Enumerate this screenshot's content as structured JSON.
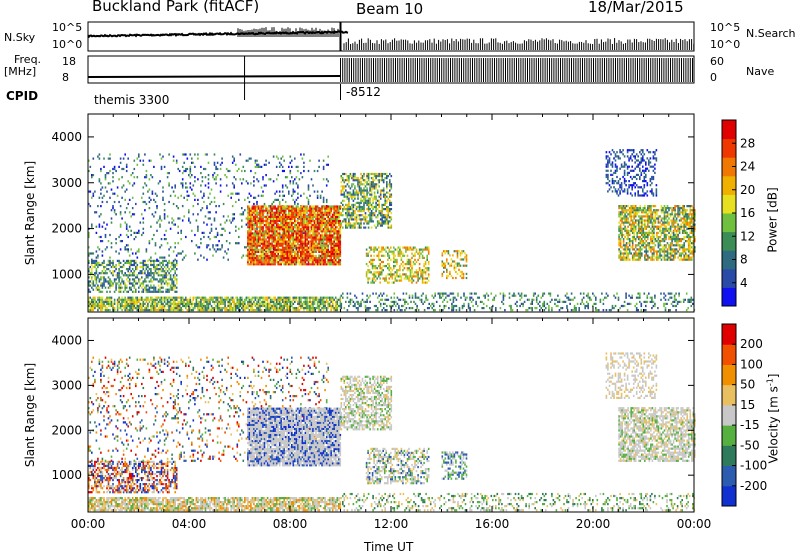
{
  "header": {
    "station": "Buckland Park (fitACF)",
    "beam": "Beam 10",
    "date": "18/Mar/2015"
  },
  "strip": {
    "nsky_label": "N.Sky",
    "nsearch_label": "N.Search",
    "nsky_ticks": [
      "10^5",
      "10^0"
    ],
    "nsearch_ticks": [
      "10^5",
      "10^0"
    ],
    "freq_label": "Freq.",
    "freq_unit": "[MHz]",
    "freq_ticks": [
      "18",
      "8"
    ],
    "nave_label": "Nave",
    "nave_ticks": [
      "60",
      "0"
    ],
    "cpid_label": "CPID",
    "cpid_values": [
      "themis 3300",
      "-8512"
    ]
  },
  "chart_data": [
    {
      "type": "heatmap",
      "title": "",
      "ylabel": "Slant Range [km]",
      "xlabel": "",
      "ylim": [
        180,
        4500
      ],
      "xlim": [
        0,
        24
      ],
      "yticks": [
        "1000",
        "2000",
        "3000",
        "4000"
      ],
      "colorbar": {
        "label": "Power [dB]",
        "ticks": [
          "28",
          "24",
          "20",
          "16",
          "12",
          "8",
          "4"
        ],
        "colors": [
          "#1010f0",
          "#2a4aa8",
          "#2e6a80",
          "#3b8c55",
          "#70c040",
          "#e6e020",
          "#f0b000",
          "#f07800",
          "#ee3800",
          "#e00000"
        ]
      }
    },
    {
      "type": "heatmap",
      "title": "",
      "ylabel": "Slant Range [km]",
      "xlabel": "Time UT",
      "ylim": [
        180,
        4500
      ],
      "xlim": [
        0,
        24
      ],
      "yticks": [
        "1000",
        "2000",
        "3000",
        "4000"
      ],
      "xticks": [
        "00:00",
        "04:00",
        "08:00",
        "12:00",
        "16:00",
        "20:00",
        "00:00"
      ],
      "colorbar": {
        "label": "Velocity [m s",
        "label_sup": "-1",
        "label_end": "]",
        "ticks": [
          "200",
          "100",
          "50",
          "15",
          "-15",
          "-50",
          "-100",
          "-200"
        ],
        "colors": [
          "#1030d0",
          "#2c5cb0",
          "#2e7a5a",
          "#56b040",
          "#c8c8c8",
          "#e8c060",
          "#f09000",
          "#f05000",
          "#e00000"
        ]
      }
    }
  ]
}
